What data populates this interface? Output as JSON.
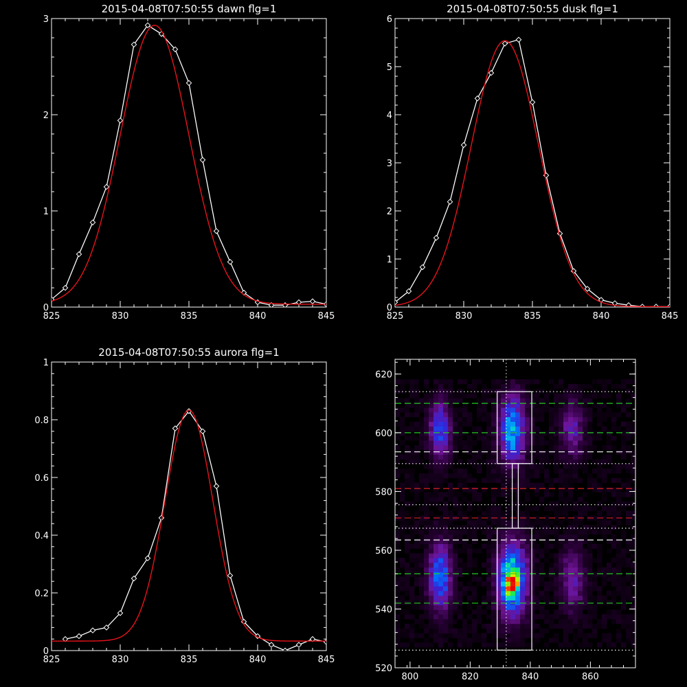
{
  "chart_data": [
    {
      "type": "line",
      "title": "2015-04-08T07:50:55 dawn flg=1",
      "xlim": [
        825,
        845
      ],
      "ylim": [
        0,
        3
      ],
      "xticks": [
        825,
        830,
        835,
        840,
        845
      ],
      "yticks": [
        0,
        1,
        2,
        3
      ],
      "series": [
        {
          "role": "measured",
          "color": "#ffffff",
          "marker": "diamond",
          "x": [
            825,
            826,
            827,
            828,
            829,
            830,
            831,
            832,
            833,
            834,
            835,
            836,
            837,
            838,
            839,
            840,
            841,
            842,
            843,
            844,
            845
          ],
          "y": [
            0.08,
            0.2,
            0.55,
            0.88,
            1.25,
            1.94,
            2.73,
            2.93,
            2.84,
            2.68,
            2.33,
            1.53,
            0.79,
            0.47,
            0.15,
            0.05,
            0.02,
            0.02,
            0.05,
            0.06,
            0.03
          ]
        },
        {
          "role": "fit",
          "color": "#e8131b",
          "gaussian": {
            "amp": 2.9,
            "center": 832.5,
            "sigma": 2.5,
            "offset": 0.03
          }
        }
      ]
    },
    {
      "type": "line",
      "title": "2015-04-08T07:50:55 dusk flg=1",
      "xlim": [
        825,
        845
      ],
      "ylim": [
        0,
        6
      ],
      "xticks": [
        825,
        830,
        835,
        840,
        845
      ],
      "yticks": [
        0,
        1,
        2,
        3,
        4,
        5,
        6
      ],
      "series": [
        {
          "role": "measured",
          "color": "#ffffff",
          "marker": "diamond",
          "x": [
            825,
            826,
            827,
            828,
            829,
            830,
            831,
            832,
            833,
            834,
            835,
            836,
            837,
            838,
            839,
            840,
            841,
            842,
            843,
            844,
            845
          ],
          "y": [
            0.1,
            0.33,
            0.83,
            1.44,
            2.19,
            3.37,
            4.34,
            4.87,
            5.48,
            5.56,
            4.26,
            2.74,
            1.53,
            0.75,
            0.38,
            0.15,
            0.08,
            0.04,
            0.01,
            0.01,
            0.01
          ]
        },
        {
          "role": "fit",
          "color": "#e8131b",
          "gaussian": {
            "amp": 5.53,
            "center": 833.0,
            "sigma": 2.45,
            "offset": 0.01
          }
        }
      ]
    },
    {
      "type": "line",
      "title": "2015-04-08T07:50:55 aurora flg=1",
      "xlim": [
        825,
        845
      ],
      "ylim": [
        0,
        1.0
      ],
      "xticks": [
        825,
        830,
        835,
        840,
        845
      ],
      "yticks": [
        0.0,
        0.2,
        0.4,
        0.6,
        0.8,
        1.0
      ],
      "series": [
        {
          "role": "measured",
          "color": "#ffffff",
          "marker": "diamond",
          "x": [
            826,
            827,
            828,
            829,
            830,
            831,
            832,
            833,
            834,
            835,
            836,
            837,
            838,
            839,
            840,
            841,
            842,
            843,
            844,
            845
          ],
          "y": [
            0.04,
            0.05,
            0.07,
            0.08,
            0.13,
            0.25,
            0.32,
            0.46,
            0.77,
            0.83,
            0.76,
            0.57,
            0.26,
            0.1,
            0.05,
            0.02,
            0.0,
            0.02,
            0.04,
            0.03
          ]
        },
        {
          "role": "fit",
          "color": "#e8131b",
          "gaussian": {
            "amp": 0.8,
            "center": 835.0,
            "sigma": 1.75,
            "offset": 0.033
          }
        }
      ]
    },
    {
      "type": "heatmap",
      "xlim": [
        795,
        875
      ],
      "ylim": [
        520,
        625
      ],
      "xticks": [
        800,
        820,
        840,
        860
      ],
      "yticks": [
        520,
        540,
        560,
        580,
        600,
        620
      ],
      "grid": {
        "x0": 795,
        "x1": 875,
        "y0": 527,
        "y1": 617,
        "dx": 1.6,
        "dy": 1.6
      },
      "blobs": [
        {
          "x": 810,
          "y": 601,
          "sx": 2.4,
          "sy": 6.5,
          "amp": 0.38
        },
        {
          "x": 810,
          "y": 551,
          "sx": 2.5,
          "sy": 7.5,
          "amp": 0.45
        },
        {
          "x": 834,
          "y": 601,
          "sx": 2.9,
          "sy": 7.5,
          "amp": 0.52
        },
        {
          "x": 834,
          "y": 550,
          "sx": 3.2,
          "sy": 8.0,
          "amp": 0.7
        },
        {
          "x": 834,
          "y": 548,
          "sx": 1.4,
          "sy": 2.2,
          "amp": 0.42
        },
        {
          "x": 854,
          "y": 601,
          "sx": 2.6,
          "sy": 6.5,
          "amp": 0.22
        },
        {
          "x": 854,
          "y": 550,
          "sx": 2.6,
          "sy": 7.0,
          "amp": 0.25
        }
      ],
      "background_level": 0.05,
      "vline_dotted": 832,
      "boxes": [
        {
          "x0": 829,
          "x1": 840.5,
          "y0": 589.5,
          "y1": 614
        },
        {
          "x0": 829,
          "x1": 840.5,
          "y0": 526,
          "y1": 567.5
        },
        {
          "x0": 834,
          "x1": 836,
          "y0": 567.5,
          "y1": 589.5
        }
      ],
      "hlines": [
        {
          "y": 610,
          "color": "#22cc22",
          "style": "dashed"
        },
        {
          "y": 600,
          "color": "#22cc22",
          "style": "dashed"
        },
        {
          "y": 593.5,
          "color": "#ffffff",
          "style": "dashed"
        },
        {
          "y": 581,
          "color": "#dd2222",
          "style": "dashed"
        },
        {
          "y": 571,
          "color": "#dd2222",
          "style": "dashed"
        },
        {
          "y": 563.5,
          "color": "#ffffff",
          "style": "dashed"
        },
        {
          "y": 552,
          "color": "#22cc22",
          "style": "dashed"
        },
        {
          "y": 542,
          "color": "#22cc22",
          "style": "dashed"
        },
        {
          "y": 614,
          "color": "#ffffff",
          "style": "dotted"
        },
        {
          "y": 589.5,
          "color": "#ffffff",
          "style": "dotted"
        },
        {
          "y": 575.5,
          "color": "#ffffff",
          "style": "dotted"
        },
        {
          "y": 567.5,
          "color": "#ffffff",
          "style": "dotted"
        },
        {
          "y": 526,
          "color": "#ffffff",
          "style": "dotted"
        }
      ]
    }
  ]
}
